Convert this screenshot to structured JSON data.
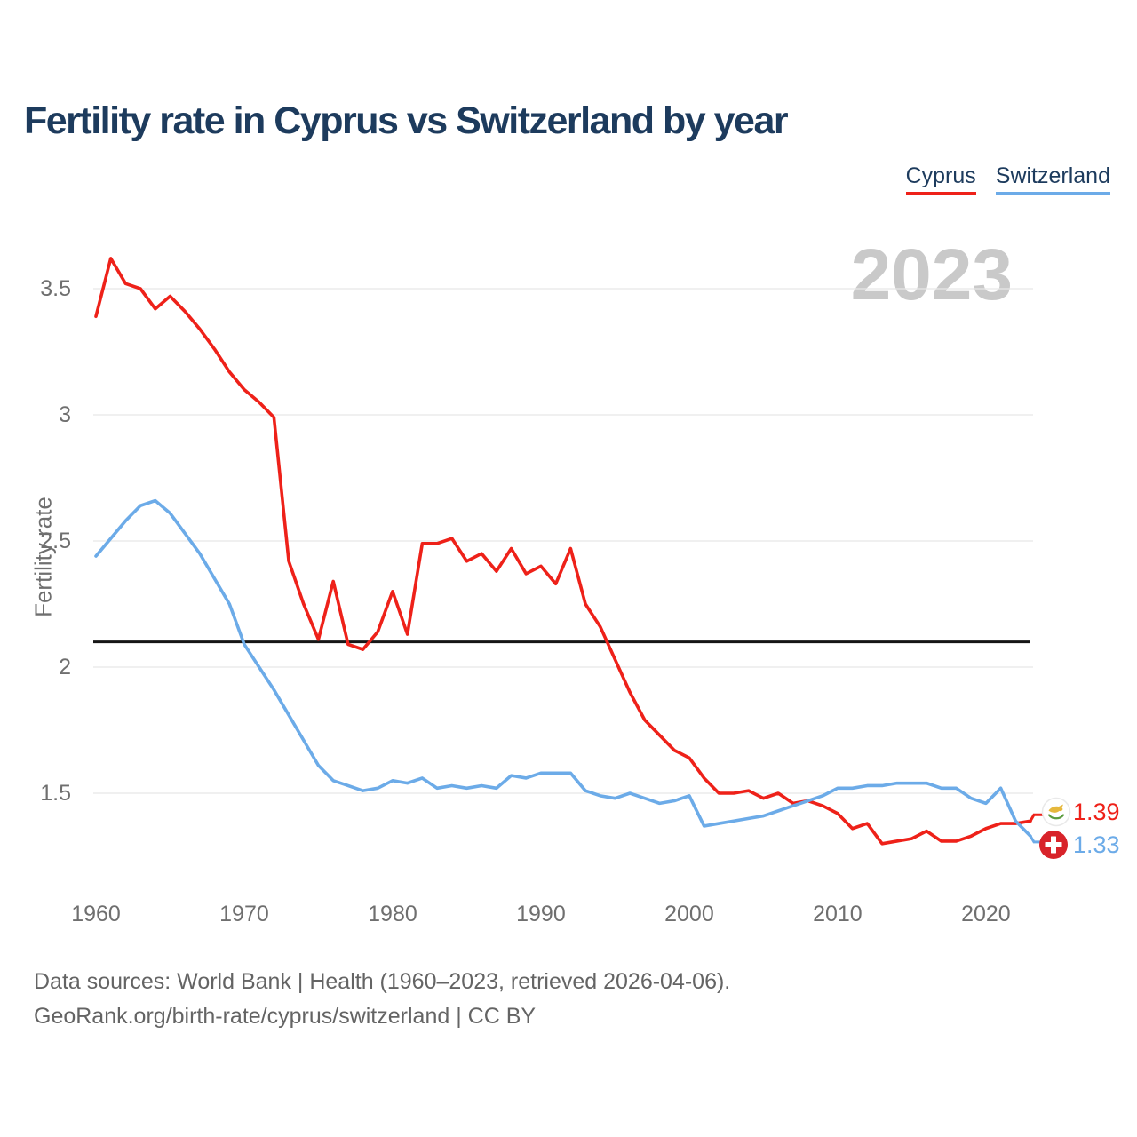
{
  "title": "Fertility rate in Cyprus vs Switzerland by year",
  "watermark": "2023",
  "legend": {
    "items": [
      {
        "label": "Cyprus",
        "color": "#ee2119"
      },
      {
        "label": "Switzerland",
        "color": "#6cabe8"
      }
    ]
  },
  "y_axis": {
    "title": "Fertility rate"
  },
  "end_labels": {
    "cyprus": {
      "value": "1.39",
      "flag": "cyprus-flag-icon"
    },
    "switzerland": {
      "value": "1.33",
      "flag": "switzerland-flag-icon"
    }
  },
  "footer": {
    "line1": "Data sources: World Bank | Health (1960–2023, retrieved 2026-04-06).",
    "line2": "GeoRank.org/birth-rate/cyprus/switzerland | CC BY"
  },
  "colors": {
    "cyprus_red": "#ee2119",
    "switzerland_blue": "#6cabe8",
    "title_navy": "#1d3b5d",
    "axis_text_gray": "#6f6f6f",
    "watermark_gray": "#c9c9c9",
    "gridline_gray": "#e8e8e8",
    "reference_black": "#161616",
    "swiss_flag_red": "#d8232a",
    "cyprus_flag_copper": "#e6b83c",
    "cyprus_flag_green": "#5b9c3e"
  },
  "chart_data": {
    "type": "line",
    "title": "Fertility rate in Cyprus vs Switzerland by year",
    "xlabel": "",
    "ylabel": "Fertility rate",
    "grid": "horizontal",
    "legend_position": "top-right",
    "xlim": [
      1960,
      2023
    ],
    "ylim": [
      1.2,
      3.72
    ],
    "x_ticks": [
      1960,
      1970,
      1980,
      1990,
      2000,
      2010,
      2020
    ],
    "y_ticks": [
      3.5,
      3,
      2.5,
      2,
      1.5
    ],
    "reference_line_y": 2.1,
    "x": [
      1960,
      1961,
      1962,
      1963,
      1964,
      1965,
      1966,
      1967,
      1968,
      1969,
      1970,
      1971,
      1972,
      1973,
      1974,
      1975,
      1976,
      1977,
      1978,
      1979,
      1980,
      1981,
      1982,
      1983,
      1984,
      1985,
      1986,
      1987,
      1988,
      1989,
      1990,
      1991,
      1992,
      1993,
      1994,
      1995,
      1996,
      1997,
      1998,
      1999,
      2000,
      2001,
      2002,
      2003,
      2004,
      2005,
      2006,
      2007,
      2008,
      2009,
      2010,
      2011,
      2012,
      2013,
      2014,
      2015,
      2016,
      2017,
      2018,
      2019,
      2020,
      2021,
      2022,
      2023
    ],
    "series": [
      {
        "name": "Cyprus",
        "color": "#ee2119",
        "final_value": 1.39,
        "values": [
          3.39,
          3.62,
          3.52,
          3.5,
          3.42,
          3.47,
          3.41,
          3.34,
          3.26,
          3.17,
          3.1,
          3.05,
          2.99,
          2.42,
          2.25,
          2.11,
          2.34,
          2.09,
          2.07,
          2.14,
          2.3,
          2.13,
          2.49,
          2.49,
          2.51,
          2.42,
          2.45,
          2.38,
          2.47,
          2.37,
          2.4,
          2.33,
          2.47,
          2.25,
          2.16,
          2.03,
          1.9,
          1.79,
          1.73,
          1.67,
          1.64,
          1.56,
          1.5,
          1.5,
          1.51,
          1.48,
          1.5,
          1.46,
          1.47,
          1.45,
          1.42,
          1.36,
          1.38,
          1.3,
          1.31,
          1.32,
          1.35,
          1.31,
          1.31,
          1.33,
          1.36,
          1.38,
          1.38,
          1.39
        ]
      },
      {
        "name": "Switzerland",
        "color": "#6cabe8",
        "final_value": 1.33,
        "values": [
          2.44,
          2.51,
          2.58,
          2.64,
          2.66,
          2.61,
          2.53,
          2.45,
          2.35,
          2.25,
          2.09,
          2.0,
          1.91,
          1.81,
          1.71,
          1.61,
          1.55,
          1.53,
          1.51,
          1.52,
          1.55,
          1.54,
          1.56,
          1.52,
          1.53,
          1.52,
          1.53,
          1.52,
          1.57,
          1.56,
          1.58,
          1.58,
          1.58,
          1.51,
          1.49,
          1.48,
          1.5,
          1.48,
          1.46,
          1.47,
          1.49,
          1.37,
          1.38,
          1.39,
          1.4,
          1.41,
          1.43,
          1.45,
          1.47,
          1.49,
          1.52,
          1.52,
          1.53,
          1.53,
          1.54,
          1.54,
          1.54,
          1.52,
          1.52,
          1.48,
          1.46,
          1.52,
          1.39,
          1.33
        ]
      }
    ]
  }
}
